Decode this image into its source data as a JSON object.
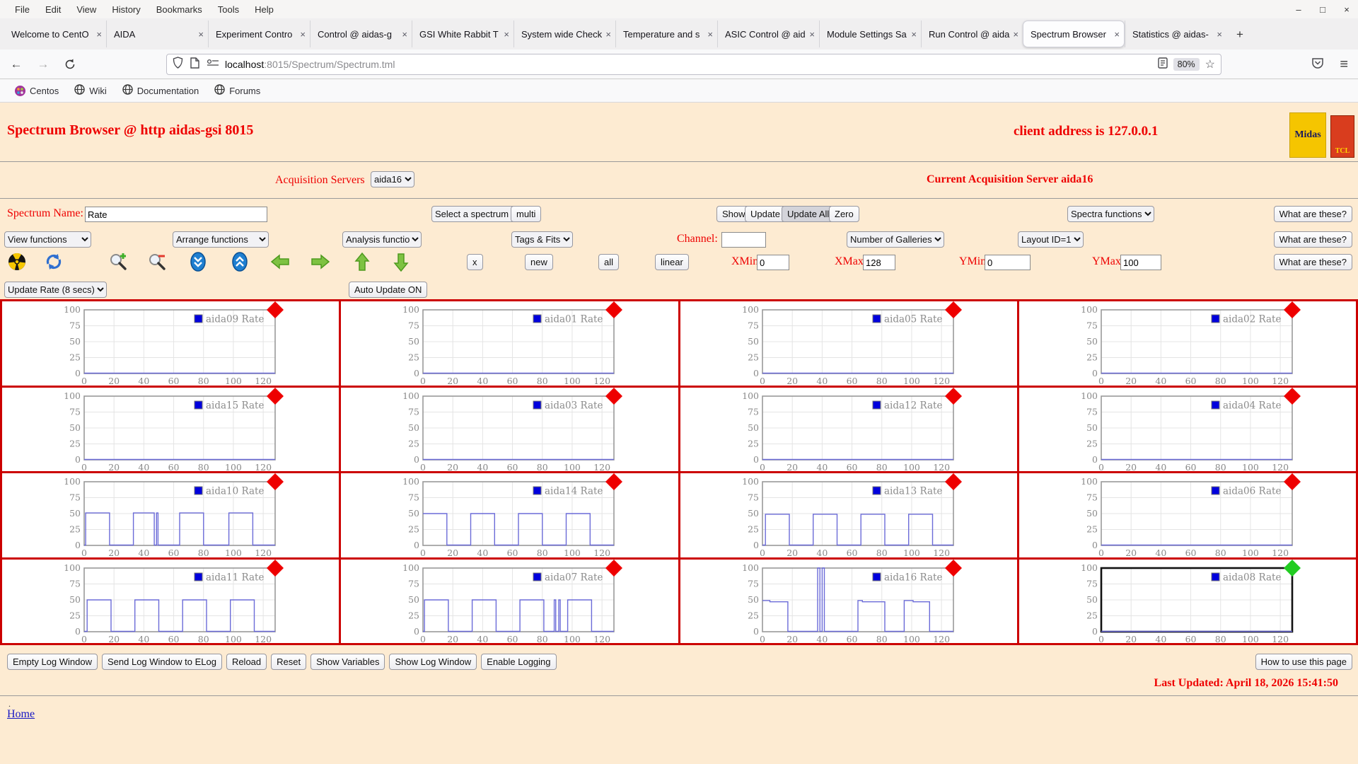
{
  "browser": {
    "menu": [
      "File",
      "Edit",
      "View",
      "History",
      "Bookmarks",
      "Tools",
      "Help"
    ],
    "window_icons": {
      "minimize": "–",
      "maximize": "□",
      "close": "×"
    },
    "tab_close": "×",
    "new_tab": "+",
    "tabs": [
      {
        "label": "Welcome to CentO",
        "active": false
      },
      {
        "label": "AIDA",
        "active": false
      },
      {
        "label": "Experiment Contro",
        "active": false
      },
      {
        "label": "Control @ aidas-g",
        "active": false
      },
      {
        "label": "GSI White Rabbit T",
        "active": false
      },
      {
        "label": "System wide Check",
        "active": false
      },
      {
        "label": "Temperature and s",
        "active": false
      },
      {
        "label": "ASIC Control @ aid",
        "active": false
      },
      {
        "label": "Module Settings Sa",
        "active": false
      },
      {
        "label": "Run Control @ aida",
        "active": false
      },
      {
        "label": "Spectrum Browser",
        "active": true
      },
      {
        "label": "Statistics @ aidas-",
        "active": false
      }
    ],
    "url": {
      "host": "localhost",
      "rest": ":8015/Spectrum/Spectrum.tml"
    },
    "zoom_badge": "80%",
    "bookmarks": [
      {
        "label": "Centos",
        "icon": "centos-icon"
      },
      {
        "label": "Wiki",
        "icon": "globe-icon"
      },
      {
        "label": "Documentation",
        "icon": "globe-icon"
      },
      {
        "label": "Forums",
        "icon": "globe-icon"
      }
    ]
  },
  "page": {
    "title": "Spectrum Browser @ http aidas-gsi 8015",
    "client_address": "client address is 127.0.0.1",
    "logos": {
      "midas": "Midas",
      "tcl": "TCL"
    },
    "acquisition": {
      "label": "Acquisition Servers",
      "selected": "aida16",
      "current": "Current Acquisition Server aida16"
    },
    "row1": {
      "spectrum_name_label": "Spectrum Name:",
      "spectrum_name_value": "Rate",
      "select_spectrum": "Select a spectrum",
      "multi": "multi",
      "show": "Show",
      "update": "Update",
      "update_all": "Update All",
      "zero": "Zero",
      "spectra_functions": "Spectra functions",
      "what": "What are these?"
    },
    "row2": {
      "view_functions": "View functions",
      "arrange_functions": "Arrange functions",
      "analysis_functions": "Analysis functions",
      "tags_fits": "Tags & Fits",
      "channel_label": "Channel:",
      "channel_value": "",
      "number_of_galleries": "Number of Galleries",
      "layout_id": "Layout ID=1",
      "what": "What are these?"
    },
    "row3": {
      "x": "x",
      "new": "new",
      "all": "all",
      "linear": "linear",
      "xmin_label": "XMin",
      "xmin": "0",
      "xmax_label": "XMax",
      "xmax": "128",
      "ymin_label": "YMin",
      "ymin": "0",
      "ymax_label": "YMax",
      "ymax": "100",
      "what": "What are these?"
    },
    "row4": {
      "update_rate": "Update Rate (8 secs)",
      "auto_update": "Auto Update ON"
    },
    "footer": {
      "buttons": [
        "Empty Log Window",
        "Send Log Window to ELog",
        "Reload",
        "Reset",
        "Show Variables",
        "Show Log Window",
        "Enable Logging"
      ],
      "help_button": "How to use this page",
      "last_updated": "Last Updated: April 18, 2026 15:41:50",
      "dot": ".",
      "home": "Home"
    }
  },
  "chart_data": {
    "type": "line",
    "xlim": [
      0,
      128
    ],
    "ylim": [
      0,
      100
    ],
    "x_ticks": [
      0,
      20,
      40,
      60,
      80,
      100,
      120
    ],
    "y_ticks": [
      0,
      25,
      50,
      75,
      100
    ],
    "grid": true,
    "legend_position": "top-right",
    "colors": {
      "line": "#6b6bd8",
      "legend_swatch": "#0000dd",
      "marker_red": "#ee0000",
      "marker_green": "#22cc22",
      "grid_line": "#e4e4e4",
      "axis_text": "#888888",
      "plot_border": "#999999",
      "selected_border": "#111111",
      "cell_border": "#cc0000"
    },
    "charts": [
      {
        "name": "aida09",
        "legend": "aida09 Rate",
        "marker": "red",
        "selected": false,
        "points": [
          [
            0,
            0.5
          ],
          [
            128,
            0.5
          ]
        ]
      },
      {
        "name": "aida01",
        "legend": "aida01 Rate",
        "marker": "red",
        "selected": false,
        "points": [
          [
            0,
            0.5
          ],
          [
            128,
            0.5
          ]
        ]
      },
      {
        "name": "aida05",
        "legend": "aida05 Rate",
        "marker": "red",
        "selected": false,
        "points": [
          [
            0,
            0.5
          ],
          [
            128,
            0.5
          ]
        ]
      },
      {
        "name": "aida02",
        "legend": "aida02 Rate",
        "marker": "red",
        "selected": false,
        "points": [
          [
            0,
            0.5
          ],
          [
            128,
            0.5
          ]
        ]
      },
      {
        "name": "aida15",
        "legend": "aida15 Rate",
        "marker": "red",
        "selected": false,
        "points": [
          [
            0,
            0.5
          ],
          [
            128,
            0.5
          ]
        ]
      },
      {
        "name": "aida03",
        "legend": "aida03 Rate",
        "marker": "red",
        "selected": false,
        "points": [
          [
            0,
            0.5
          ],
          [
            128,
            0.5
          ]
        ]
      },
      {
        "name": "aida12",
        "legend": "aida12 Rate",
        "marker": "red",
        "selected": false,
        "points": [
          [
            0,
            0.5
          ],
          [
            128,
            0.5
          ]
        ]
      },
      {
        "name": "aida04",
        "legend": "aida04 Rate",
        "marker": "red",
        "selected": false,
        "points": [
          [
            0,
            0.5
          ],
          [
            128,
            0.5
          ]
        ]
      },
      {
        "name": "aida10",
        "legend": "aida10 Rate",
        "marker": "red",
        "selected": false,
        "points": [
          [
            0,
            0.5
          ],
          [
            1,
            0.5
          ],
          [
            1,
            51
          ],
          [
            17,
            51
          ],
          [
            17,
            0.5
          ],
          [
            33,
            0.5
          ],
          [
            33,
            51
          ],
          [
            47,
            51
          ],
          [
            47,
            0.5
          ],
          [
            48.5,
            0.5
          ],
          [
            48.5,
            51
          ],
          [
            49.5,
            51
          ],
          [
            49.5,
            0.5
          ],
          [
            64,
            0.5
          ],
          [
            64,
            51
          ],
          [
            80,
            51
          ],
          [
            80,
            0.5
          ],
          [
            97,
            0.5
          ],
          [
            97,
            51
          ],
          [
            113,
            51
          ],
          [
            113,
            0.5
          ],
          [
            128,
            0.5
          ]
        ]
      },
      {
        "name": "aida14",
        "legend": "aida14 Rate",
        "marker": "red",
        "selected": false,
        "points": [
          [
            0,
            50
          ],
          [
            16,
            50
          ],
          [
            16,
            0.5
          ],
          [
            32,
            0.5
          ],
          [
            32,
            50
          ],
          [
            48,
            50
          ],
          [
            48,
            0.5
          ],
          [
            64,
            0.5
          ],
          [
            64,
            50
          ],
          [
            80,
            50
          ],
          [
            80,
            0.5
          ],
          [
            96,
            0.5
          ],
          [
            96,
            50
          ],
          [
            112,
            50
          ],
          [
            112,
            0.5
          ],
          [
            128,
            0.5
          ]
        ]
      },
      {
        "name": "aida13",
        "legend": "aida13 Rate",
        "marker": "red",
        "selected": false,
        "points": [
          [
            0,
            0.5
          ],
          [
            2,
            0.5
          ],
          [
            2,
            49
          ],
          [
            18,
            49
          ],
          [
            18,
            0.5
          ],
          [
            34,
            0.5
          ],
          [
            34,
            49
          ],
          [
            50,
            49
          ],
          [
            50,
            0.5
          ],
          [
            66,
            0.5
          ],
          [
            66,
            49
          ],
          [
            82,
            49
          ],
          [
            82,
            0.5
          ],
          [
            98,
            0.5
          ],
          [
            98,
            49
          ],
          [
            114,
            49
          ],
          [
            114,
            0.5
          ],
          [
            128,
            0.5
          ]
        ]
      },
      {
        "name": "aida06",
        "legend": "aida06 Rate",
        "marker": "red",
        "selected": false,
        "points": [
          [
            0,
            0.5
          ],
          [
            128,
            0.5
          ]
        ]
      },
      {
        "name": "aida11",
        "legend": "aida11 Rate",
        "marker": "red",
        "selected": false,
        "points": [
          [
            0,
            0.5
          ],
          [
            2,
            0.5
          ],
          [
            2,
            50
          ],
          [
            18,
            50
          ],
          [
            18,
            0.5
          ],
          [
            34,
            0.5
          ],
          [
            34,
            50
          ],
          [
            50,
            50
          ],
          [
            50,
            0.5
          ],
          [
            66,
            0.5
          ],
          [
            66,
            50
          ],
          [
            82,
            50
          ],
          [
            82,
            0.5
          ],
          [
            98,
            0.5
          ],
          [
            98,
            50
          ],
          [
            114,
            50
          ],
          [
            114,
            0.5
          ],
          [
            128,
            0.5
          ]
        ]
      },
      {
        "name": "aida07",
        "legend": "aida07 Rate",
        "marker": "red",
        "selected": false,
        "points": [
          [
            0,
            0.5
          ],
          [
            1,
            0.5
          ],
          [
            1,
            50
          ],
          [
            17,
            50
          ],
          [
            17,
            0.5
          ],
          [
            33,
            0.5
          ],
          [
            33,
            50
          ],
          [
            49,
            50
          ],
          [
            49,
            0.5
          ],
          [
            65,
            0.5
          ],
          [
            65,
            50
          ],
          [
            81,
            50
          ],
          [
            81,
            0.5
          ],
          [
            88,
            0.5
          ],
          [
            88,
            50
          ],
          [
            89,
            50
          ],
          [
            89,
            0.5
          ],
          [
            91,
            0.5
          ],
          [
            91,
            50
          ],
          [
            92,
            50
          ],
          [
            92,
            0.5
          ],
          [
            97,
            0.5
          ],
          [
            97,
            50
          ],
          [
            113,
            50
          ],
          [
            113,
            0.5
          ],
          [
            128,
            0.5
          ]
        ]
      },
      {
        "name": "aida16",
        "legend": "aida16 Rate",
        "marker": "red",
        "selected": false,
        "points": [
          [
            0,
            49
          ],
          [
            5,
            49
          ],
          [
            5,
            47
          ],
          [
            17,
            47
          ],
          [
            17,
            0.5
          ],
          [
            37,
            0.5
          ],
          [
            37,
            100
          ],
          [
            38.5,
            100
          ],
          [
            38.5,
            0.5
          ],
          [
            40,
            0.5
          ],
          [
            40,
            100
          ],
          [
            41.5,
            100
          ],
          [
            41.5,
            0.5
          ],
          [
            64,
            0.5
          ],
          [
            64,
            49
          ],
          [
            67,
            49
          ],
          [
            67,
            47
          ],
          [
            82,
            47
          ],
          [
            82,
            0.5
          ],
          [
            95,
            0.5
          ],
          [
            95,
            49
          ],
          [
            101,
            49
          ],
          [
            101,
            47
          ],
          [
            112,
            47
          ],
          [
            112,
            0.5
          ],
          [
            128,
            0.5
          ]
        ]
      },
      {
        "name": "aida08",
        "legend": "aida08 Rate",
        "marker": "green",
        "selected": true,
        "points": [
          [
            0,
            0.5
          ],
          [
            128,
            0.5
          ]
        ]
      }
    ]
  }
}
